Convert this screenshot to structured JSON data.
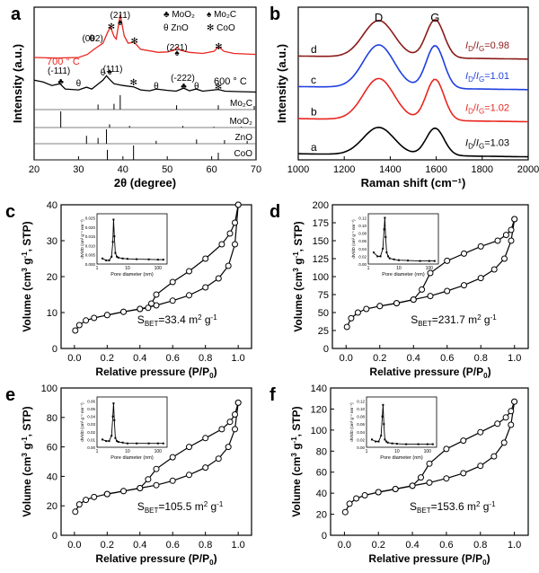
{
  "colors": {
    "axis": "#000000",
    "red": "#e8261f",
    "blue": "#1f3fe0",
    "dark_red": "#8b1a1a",
    "black": "#000000"
  },
  "chart_data": [
    {
      "panel": "a",
      "type": "line",
      "xlabel": "2θ (degree)",
      "ylabel": "Intensity (a.u.)",
      "xlim": [
        20,
        70
      ],
      "xticks": [
        20,
        30,
        40,
        50,
        60,
        70
      ],
      "legend": [
        {
          "symbol": "♣",
          "label": "MoO₂"
        },
        {
          "symbol": "♠",
          "label": "Mo₂C"
        },
        {
          "symbol": "θ",
          "label": "ZnO"
        },
        {
          "symbol": "✻",
          "label": "CoO"
        }
      ],
      "series": [
        {
          "name": "700 ° C",
          "color": "#e8261f",
          "x": [
            20,
            25,
            30,
            32,
            33.5,
            34.5,
            35.5,
            36.5,
            37.2,
            38,
            38.5,
            39.4,
            40.3,
            41.2,
            42.5,
            44,
            48,
            50,
            51.5,
            52.2,
            53,
            55,
            58,
            60.5,
            61.6,
            62.8,
            65,
            70
          ],
          "y": [
            0.14,
            0.13,
            0.14,
            0.2,
            0.3,
            0.36,
            0.42,
            0.62,
            0.74,
            0.55,
            0.5,
            0.98,
            0.56,
            0.42,
            0.44,
            0.3,
            0.24,
            0.25,
            0.28,
            0.34,
            0.28,
            0.24,
            0.22,
            0.26,
            0.35,
            0.26,
            0.22,
            0.2
          ]
        },
        {
          "name": "600 ° C",
          "color": "#000000",
          "x": [
            20,
            22,
            24,
            25.8,
            27,
            30,
            31.8,
            33,
            34.5,
            35.5,
            36.3,
            37,
            38,
            40,
            42.4,
            44,
            46,
            47.5,
            50,
            52,
            53.7,
            55,
            56.5,
            58,
            61.5,
            63,
            66,
            70
          ],
          "y": [
            0.3,
            0.26,
            0.18,
            0.22,
            0.1,
            0.08,
            0.14,
            0.1,
            0.22,
            0.3,
            0.4,
            0.32,
            0.22,
            0.18,
            0.15,
            0.08,
            0.06,
            0.1,
            0.07,
            0.05,
            0.12,
            0.06,
            0.1,
            0.05,
            0.09,
            0.05,
            0.04,
            0.03
          ]
        }
      ],
      "annotations": [
        {
          "text": "(211)",
          "x": 39.4
        },
        {
          "text": "(002)",
          "x": 34.4
        },
        {
          "text": "(221)",
          "x": 52.2
        },
        {
          "text": "(-111)",
          "x": 26
        },
        {
          "text": "(111)",
          "x": 36.5
        },
        {
          "text": "(-222)",
          "x": 53.5
        }
      ],
      "reference_patterns": [
        {
          "name": "Mo₂C",
          "positions": [
            34.4,
            38,
            39.4,
            52.1,
            61.5,
            69.6
          ],
          "heights": [
            0.35,
            0.4,
            1.0,
            0.3,
            0.3,
            0.25
          ]
        },
        {
          "name": "MoO₂",
          "positions": [
            26,
            37,
            41.5,
            53.5,
            60.5,
            66.7
          ],
          "heights": [
            1.0,
            0.2,
            0.1,
            0.1,
            0.05,
            0.05
          ]
        },
        {
          "name": "ZnO",
          "positions": [
            31.8,
            34.4,
            36.3,
            47.5,
            56.6,
            62.9,
            68
          ],
          "heights": [
            0.55,
            0.4,
            1.0,
            0.2,
            0.3,
            0.25,
            0.2
          ]
        },
        {
          "name": "CoO",
          "positions": [
            36.5,
            42.4,
            61.5
          ],
          "heights": [
            0.7,
            1.0,
            0.5
          ]
        }
      ]
    },
    {
      "panel": "b",
      "type": "line",
      "xlabel": "Raman shift (cm⁻¹)",
      "ylabel": "Intensity (a.u.)",
      "xlim": [
        1000,
        2000
      ],
      "xticks": [
        1000,
        1200,
        1400,
        1600,
        1800,
        2000
      ],
      "peak_labels": [
        {
          "text": "D",
          "x": 1350
        },
        {
          "text": "G",
          "x": 1595
        }
      ],
      "series": [
        {
          "name": "a",
          "color": "#000000",
          "ratio": "1.03",
          "baseline": 0.04,
          "d_height": 0.18,
          "g_height": 0.18
        },
        {
          "name": "b",
          "color": "#e8261f",
          "ratio": "1.02",
          "baseline": 0.27,
          "d_height": 0.27,
          "g_height": 0.27
        },
        {
          "name": "c",
          "color": "#1f3fe0",
          "ratio": "1.01",
          "baseline": 0.48,
          "d_height": 0.28,
          "g_height": 0.28
        },
        {
          "name": "d",
          "color": "#8b1a1a",
          "ratio": "0.98",
          "baseline": 0.68,
          "d_height": 0.24,
          "g_height": 0.25
        }
      ]
    },
    {
      "panel": "c",
      "type": "line",
      "xlabel": "Relative pressure (P/P0)",
      "ylabel": "Volume (cm³ g⁻¹, STP)",
      "xlim": [
        0,
        1
      ],
      "ylim": [
        0,
        40
      ],
      "yticks": [
        0,
        10,
        20,
        30,
        40
      ],
      "xticks": [
        0.0,
        0.2,
        0.4,
        0.6,
        0.8,
        1.0
      ],
      "sbet": "33.4",
      "sbet_unit": "m² g⁻¹",
      "adsorption": {
        "x": [
          0.005,
          0.03,
          0.07,
          0.12,
          0.2,
          0.3,
          0.4,
          0.5,
          0.6,
          0.7,
          0.8,
          0.88,
          0.94,
          0.98,
          1.0
        ],
        "y": [
          5.0,
          6.5,
          7.8,
          8.5,
          9.3,
          10.2,
          11.0,
          12.0,
          13.3,
          14.8,
          17.0,
          19.5,
          23.0,
          29.0,
          40.0
        ]
      },
      "desorption": {
        "x": [
          1.0,
          0.98,
          0.95,
          0.9,
          0.8,
          0.7,
          0.6,
          0.5,
          0.47,
          0.45,
          0.4,
          0.3,
          0.2
        ],
        "y": [
          40.0,
          35.0,
          32.0,
          29.0,
          25.0,
          21.5,
          18.5,
          15.0,
          12.5,
          11.3,
          11.0,
          10.2,
          9.3
        ]
      },
      "inset": {
        "xlabel": "Pore diameter (nm)",
        "ylabel": "dV/dD (cm³ g⁻¹ nm⁻¹)",
        "ytick_labels": [
          "0.000",
          "0.005",
          "0.010",
          "0.015",
          "0.020",
          "0.025"
        ],
        "ylim": [
          0,
          0.025
        ],
        "xtick_labels": [
          "1",
          "10",
          "100"
        ],
        "x": [
          1.5,
          2,
          2.5,
          3,
          3.3,
          3.5,
          3.7,
          4,
          4.5,
          5,
          7,
          10,
          20,
          50,
          100,
          150
        ],
        "y": [
          0.003,
          0.002,
          0.002,
          0.004,
          0.012,
          0.024,
          0.015,
          0.006,
          0.004,
          0.0035,
          0.003,
          0.0028,
          0.0026,
          0.0025,
          0.0024,
          0.0024
        ]
      }
    },
    {
      "panel": "d",
      "type": "line",
      "xlabel": "Relative pressure (P/P0)",
      "ylabel": "Volume (cm³ g⁻¹, STP)",
      "xlim": [
        0,
        1
      ],
      "ylim": [
        0,
        200
      ],
      "yticks": [
        0,
        25,
        50,
        75,
        100,
        125,
        150,
        175,
        200
      ],
      "xticks": [
        0.0,
        0.2,
        0.4,
        0.6,
        0.8,
        1.0
      ],
      "sbet": "231.7",
      "sbet_unit": "m² g⁻¹",
      "adsorption": {
        "x": [
          0.005,
          0.03,
          0.07,
          0.12,
          0.2,
          0.3,
          0.4,
          0.5,
          0.6,
          0.7,
          0.8,
          0.88,
          0.94,
          0.98,
          1.0
        ],
        "y": [
          30,
          42,
          50,
          55,
          59,
          63,
          68,
          73,
          80,
          88,
          98,
          110,
          125,
          150,
          180
        ]
      },
      "desorption": {
        "x": [
          1.0,
          0.98,
          0.95,
          0.9,
          0.8,
          0.7,
          0.6,
          0.5,
          0.45,
          0.4,
          0.3,
          0.2
        ],
        "y": [
          180,
          165,
          158,
          150,
          142,
          132,
          122,
          105,
          82,
          68,
          63,
          59
        ]
      },
      "inset": {
        "xlabel": "Pore diameter (nm)",
        "ylabel": "dV/dD (cm³ g⁻¹ nm⁻¹)",
        "ytick_labels": [
          "0.00",
          "0.02",
          "0.04",
          "0.06",
          "0.08",
          "0.10",
          "0.12"
        ],
        "ylim": [
          0,
          0.12
        ],
        "xtick_labels": [
          "1",
          "10",
          "100"
        ],
        "x": [
          1.5,
          2,
          2.5,
          3,
          3.3,
          3.5,
          3.7,
          4,
          4.5,
          5,
          7,
          10,
          20,
          50,
          100,
          150
        ],
        "y": [
          0.03,
          0.02,
          0.02,
          0.04,
          0.09,
          0.12,
          0.07,
          0.03,
          0.02,
          0.015,
          0.012,
          0.01,
          0.009,
          0.008,
          0.008,
          0.008
        ]
      }
    },
    {
      "panel": "e",
      "type": "line",
      "xlabel": "Relative pressure (P/P0)",
      "ylabel": "Volume (cm³ g⁻¹, STP)",
      "xlim": [
        0,
        1
      ],
      "ylim": [
        0,
        100
      ],
      "yticks": [
        0,
        20,
        40,
        60,
        80,
        100
      ],
      "xticks": [
        0.0,
        0.2,
        0.4,
        0.6,
        0.8,
        1.0
      ],
      "sbet": "105.5",
      "sbet_unit": "m² g⁻¹",
      "adsorption": {
        "x": [
          0.005,
          0.03,
          0.07,
          0.12,
          0.2,
          0.3,
          0.4,
          0.5,
          0.6,
          0.7,
          0.8,
          0.88,
          0.94,
          0.98,
          1.0
        ],
        "y": [
          16,
          21,
          24,
          26,
          28,
          30,
          32,
          34,
          37,
          41,
          46,
          52,
          60,
          72,
          90
        ]
      },
      "desorption": {
        "x": [
          1.0,
          0.98,
          0.95,
          0.9,
          0.8,
          0.7,
          0.6,
          0.5,
          0.45,
          0.4,
          0.3,
          0.2
        ],
        "y": [
          90,
          82,
          77,
          72,
          66,
          60,
          53,
          45,
          38,
          32,
          30,
          28
        ]
      },
      "inset": {
        "xlabel": "Pore diameter (nm)",
        "ylabel": "dV/dD (cm³ g⁻¹ nm⁻¹)",
        "ytick_labels": [
          "0.00",
          "0.01",
          "0.02",
          "0.03",
          "0.04",
          "0.05",
          "0.06"
        ],
        "ylim": [
          0,
          0.06
        ],
        "xtick_labels": [
          "1",
          "10",
          "100"
        ],
        "x": [
          1.5,
          2,
          2.5,
          3,
          3.3,
          3.5,
          3.7,
          4,
          4.5,
          5,
          7,
          10,
          20,
          50,
          100,
          150
        ],
        "y": [
          0.01,
          0.008,
          0.008,
          0.015,
          0.04,
          0.057,
          0.035,
          0.012,
          0.008,
          0.007,
          0.006,
          0.005,
          0.005,
          0.005,
          0.005,
          0.005
        ]
      }
    },
    {
      "panel": "f",
      "type": "line",
      "xlabel": "Relative pressure (P/P0)",
      "ylabel": "Volume (cm³ g⁻¹, STP)",
      "xlim": [
        0,
        1
      ],
      "ylim": [
        0,
        140
      ],
      "yticks": [
        0,
        20,
        40,
        60,
        80,
        100,
        120,
        140
      ],
      "xticks": [
        0.0,
        0.2,
        0.4,
        0.6,
        0.8,
        1.0
      ],
      "sbet": "153.6",
      "sbet_unit": "m² g⁻¹",
      "adsorption": {
        "x": [
          0.005,
          0.03,
          0.07,
          0.12,
          0.2,
          0.3,
          0.4,
          0.5,
          0.6,
          0.7,
          0.8,
          0.88,
          0.94,
          0.98,
          1.0
        ],
        "y": [
          22,
          30,
          35,
          38,
          41,
          44,
          47,
          50,
          54,
          59,
          66,
          75,
          88,
          105,
          127
        ]
      },
      "desorption": {
        "x": [
          1.0,
          0.98,
          0.95,
          0.9,
          0.8,
          0.7,
          0.6,
          0.5,
          0.45,
          0.4,
          0.3,
          0.2
        ],
        "y": [
          127,
          118,
          112,
          106,
          98,
          90,
          82,
          68,
          55,
          47,
          44,
          41
        ]
      },
      "inset": {
        "xlabel": "Pore diameter (nm)",
        "ylabel": "dV/dD (cm³ g⁻¹ nm⁻¹)",
        "ytick_labels": [
          "0.00",
          "0.02",
          "0.04",
          "0.06",
          "0.08",
          "0.10",
          "0.12"
        ],
        "ylim": [
          0,
          0.12
        ],
        "xtick_labels": [
          "1",
          "10",
          "100"
        ],
        "x": [
          1.5,
          2,
          2.5,
          3,
          3.3,
          3.5,
          3.7,
          4,
          4.5,
          5,
          7,
          10,
          20,
          50,
          100,
          150
        ],
        "y": [
          0.02,
          0.015,
          0.015,
          0.03,
          0.08,
          0.11,
          0.06,
          0.02,
          0.015,
          0.012,
          0.01,
          0.009,
          0.008,
          0.008,
          0.008,
          0.008
        ]
      }
    }
  ]
}
